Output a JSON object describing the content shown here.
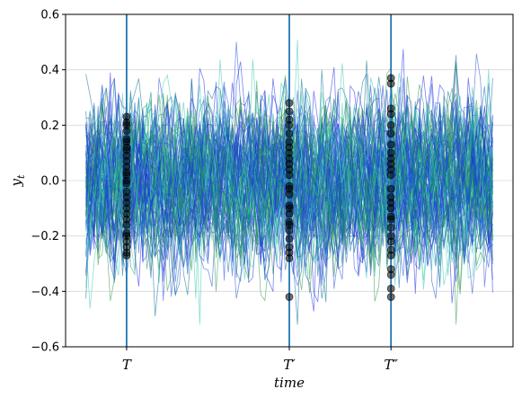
{
  "chart_data": {
    "type": "line",
    "xlabel": "time",
    "ylabel": "y",
    "ylabel_subscript": "t",
    "ylim": [
      -0.6,
      0.6
    ],
    "yticks": [
      -0.6,
      -0.4,
      -0.2,
      0.0,
      0.2,
      0.4,
      0.6
    ],
    "ytick_labels": [
      "−0.6",
      "−0.4",
      "−0.2",
      "0.0",
      "0.2",
      "0.4",
      "0.6"
    ],
    "xlim": [
      -10,
      210
    ],
    "x_range": [
      0,
      200
    ],
    "grid": "horizontal",
    "vertical_markers": [
      {
        "label": "T",
        "x": 20
      },
      {
        "label": "T′",
        "x": 100
      },
      {
        "label": "T″",
        "x": 150
      }
    ],
    "colors": {
      "marker_line": "#1f77b4",
      "dots": "#000000",
      "series_palette": [
        "#1f2fe6",
        "#2d9a4a",
        "#3cc9b0",
        "#0a6f9a",
        "#2a52d9"
      ]
    },
    "series_count": 90,
    "series_spread_std": 0.14,
    "dot_values": {
      "T": [
        0.23,
        0.21,
        0.18,
        0.15,
        0.12,
        0.09,
        0.05,
        0.02,
        -0.01,
        -0.04,
        -0.08,
        -0.1,
        -0.14,
        -0.16,
        -0.19,
        -0.22,
        -0.24,
        -0.26,
        -0.27,
        0.0,
        0.07,
        -0.06,
        0.14,
        0.2,
        -0.12,
        -0.2,
        0.11,
        0.03
      ],
      "T′": [
        0.28,
        0.25,
        0.2,
        0.17,
        0.14,
        0.1,
        0.06,
        0.02,
        -0.02,
        -0.05,
        -0.09,
        -0.12,
        -0.15,
        -0.18,
        -0.21,
        -0.24,
        -0.26,
        -0.28,
        -0.42,
        0.08,
        -0.03,
        0.12,
        0.22,
        -0.16,
        0.04,
        -0.1
      ],
      "T″": [
        0.37,
        0.35,
        0.26,
        0.24,
        0.17,
        0.13,
        0.1,
        0.06,
        0.02,
        -0.03,
        -0.06,
        -0.1,
        -0.14,
        -0.17,
        -0.2,
        -0.22,
        -0.25,
        -0.27,
        -0.32,
        -0.34,
        -0.39,
        -0.42,
        0.2,
        -0.08,
        0.04,
        -0.13,
        0.08
      ]
    }
  }
}
